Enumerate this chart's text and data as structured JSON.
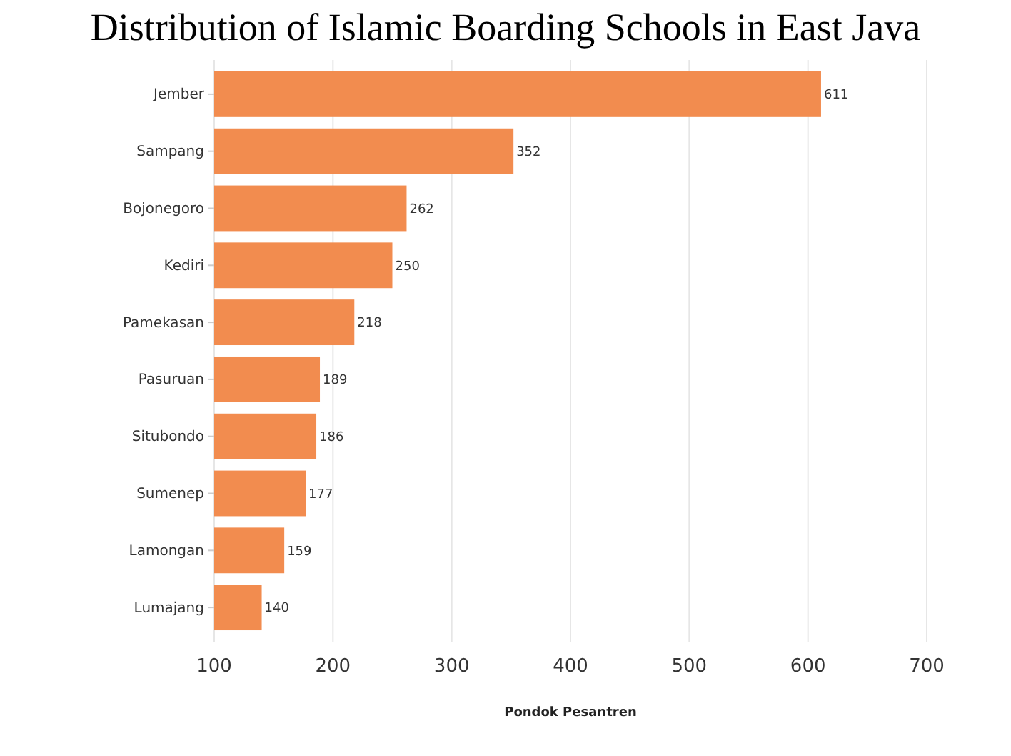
{
  "chart_data": {
    "type": "bar",
    "orientation": "horizontal",
    "title": "Distribution of Islamic Boarding Schools in East Java",
    "xlabel": "Pondok Pesantren",
    "categories": [
      "Jember",
      "Sampang",
      "Bojonegoro",
      "Kediri",
      "Pamekasan",
      "Pasuruan",
      "Situbondo",
      "Sumenep",
      "Lamongan",
      "Lumajang"
    ],
    "values": [
      611,
      352,
      262,
      250,
      218,
      189,
      186,
      177,
      159,
      140
    ],
    "color": "#f28c4f",
    "xlim": [
      100,
      700
    ],
    "xticks": [
      100,
      200,
      300,
      400,
      500,
      600,
      700
    ],
    "grid": "x",
    "data_labels": true
  }
}
